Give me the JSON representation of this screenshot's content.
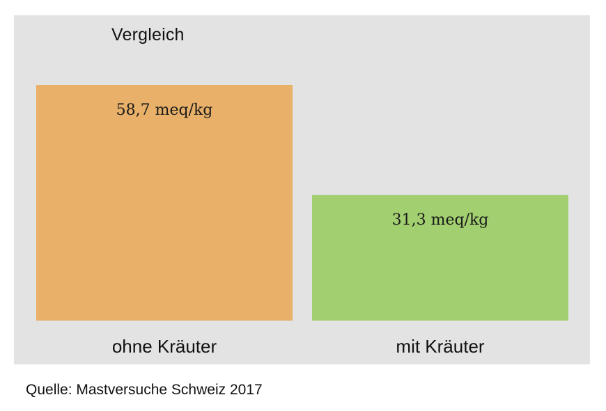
{
  "chart_data": {
    "type": "bar",
    "title": "Vergleich",
    "categories": [
      "ohne Kräuter",
      "mit Kräuter"
    ],
    "values": [
      58.7,
      31.3
    ],
    "data_labels": [
      "58,7 meq/kg",
      "31,3 meq/kg"
    ],
    "unit": "meq/kg",
    "colors": [
      "#e8b069",
      "#a2cf70"
    ],
    "ylim": [
      0,
      58.7
    ],
    "grid": false,
    "legend": "none"
  },
  "footer": {
    "source": "Quelle: Mastversuche Schweiz 2017"
  }
}
